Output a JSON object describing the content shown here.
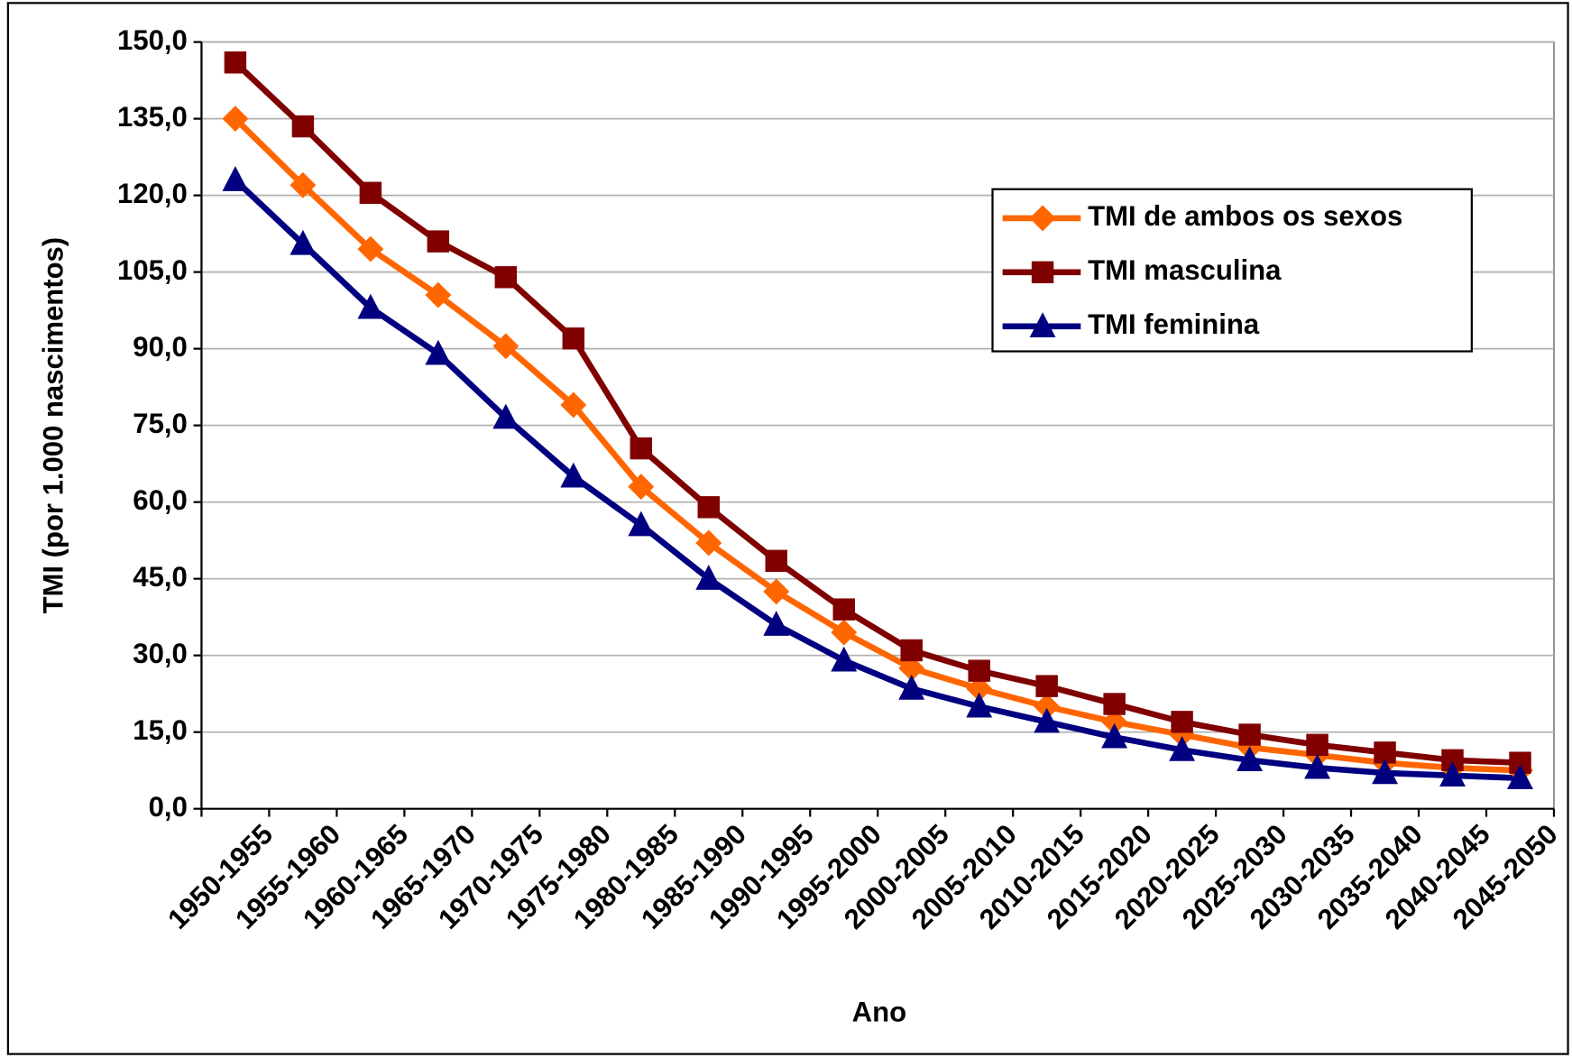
{
  "chart_data": {
    "type": "line",
    "x_label": "Ano",
    "y_label": "TMI (por 1.000 nascimentos)",
    "categories": [
      "1950-1955",
      "1955-1960",
      "1960-1965",
      "1965-1970",
      "1970-1975",
      "1975-1980",
      "1980-1985",
      "1985-1990",
      "1990-1995",
      "1995-2000",
      "2000-2005",
      "2005-2010",
      "2010-2015",
      "2015-2020",
      "2020-2025",
      "2025-2030",
      "2030-2035",
      "2035-2040",
      "2040-2045",
      "2045-2050"
    ],
    "series": [
      {
        "name": "TMI de ambos os sexos",
        "color": "#ff6600",
        "marker": "diamond",
        "values": [
          135,
          122,
          109.5,
          100.5,
          90.5,
          79,
          63,
          52,
          42.5,
          34.5,
          27.5,
          23.5,
          20,
          17,
          14.5,
          12,
          10.5,
          9,
          8,
          7.5
        ]
      },
      {
        "name": "TMI masculina",
        "color": "#800000",
        "marker": "square",
        "values": [
          146,
          133.5,
          120.5,
          111,
          104,
          92,
          70.5,
          59,
          48.5,
          39,
          31,
          27,
          24,
          20.5,
          17,
          14.5,
          12.5,
          11,
          9.5,
          9
        ]
      },
      {
        "name": "TMI feminina",
        "color": "#000080",
        "marker": "triangle",
        "values": [
          123,
          110.5,
          98,
          89,
          76.5,
          65,
          55.5,
          45,
          36,
          29,
          23.5,
          20,
          17,
          14,
          11.5,
          9.5,
          8,
          7,
          6.5,
          6
        ]
      }
    ],
    "ylim": [
      0,
      150
    ],
    "yticks": [
      {
        "value": 0,
        "label": "0,0"
      },
      {
        "value": 15,
        "label": "15,0"
      },
      {
        "value": 30,
        "label": "30,0"
      },
      {
        "value": 45,
        "label": "45,0"
      },
      {
        "value": 60,
        "label": "60,0"
      },
      {
        "value": 75,
        "label": "75,0"
      },
      {
        "value": 90,
        "label": "90,0"
      },
      {
        "value": 105,
        "label": "105,0"
      },
      {
        "value": 120,
        "label": "120,0"
      },
      {
        "value": 135,
        "label": "135,0"
      },
      {
        "value": 150,
        "label": "150,0"
      }
    ],
    "grid": true,
    "legend": "upper right"
  }
}
